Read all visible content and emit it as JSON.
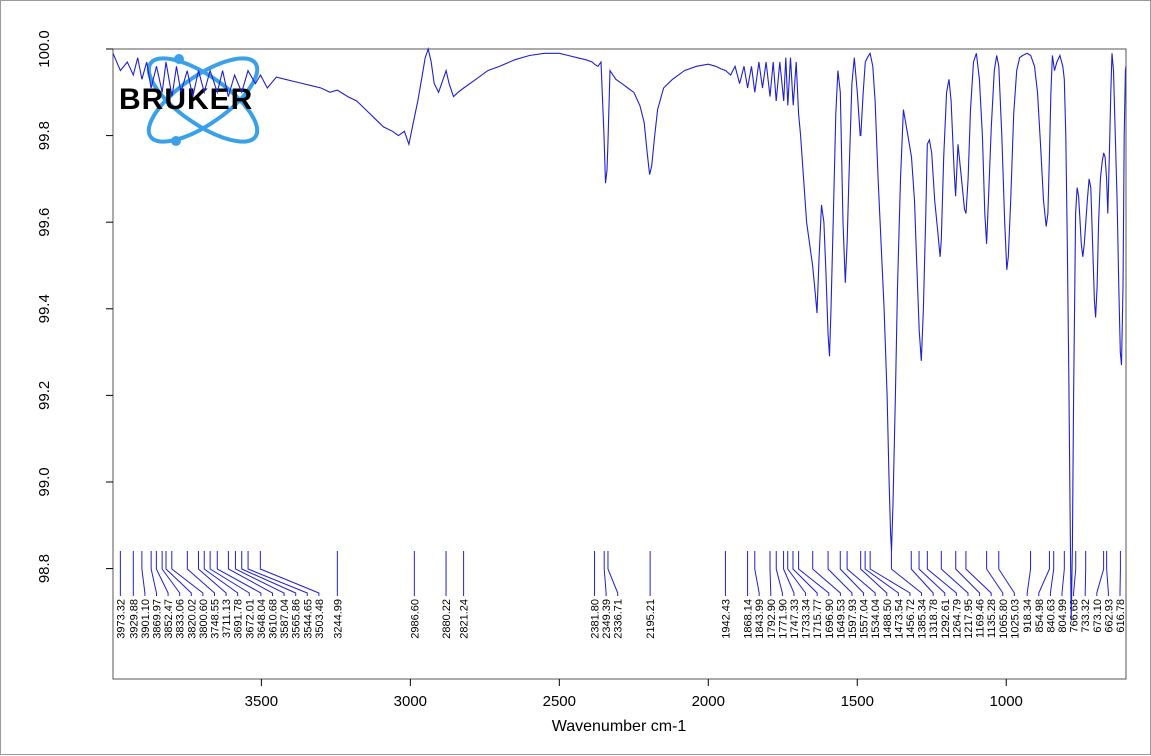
{
  "chart_data": {
    "type": "line",
    "title": "",
    "xlabel": "Wavenumber cm-1",
    "ylabel": "",
    "xlim": [
      3998,
      598
    ],
    "ylim": [
      98.545,
      100.0
    ],
    "x_ticks": [
      3500,
      3000,
      2500,
      2000,
      1500,
      1000
    ],
    "y_ticks": [
      98.8,
      99.0,
      99.2,
      99.4,
      99.6,
      99.8,
      100.0
    ],
    "y_tick_labels": [
      "98.8",
      "99.0",
      "99.2",
      "99.4",
      "99.6",
      "99.8",
      "100.0"
    ],
    "line_color": "#2020d0",
    "grid": false,
    "logo": {
      "text": "BRUKER",
      "ring_color": "#3aa0e8",
      "text_color": "#000000"
    },
    "series": [
      {
        "points": [
          [
            3998,
            99.99
          ],
          [
            3973,
            99.95
          ],
          [
            3950,
            99.97
          ],
          [
            3930,
            99.94
          ],
          [
            3915,
            99.98
          ],
          [
            3901,
            99.93
          ],
          [
            3885,
            99.97
          ],
          [
            3870,
            99.91
          ],
          [
            3852,
            99.96
          ],
          [
            3833,
            99.9
          ],
          [
            3820,
            99.97
          ],
          [
            3800,
            99.89
          ],
          [
            3785,
            99.96
          ],
          [
            3770,
            99.9
          ],
          [
            3749,
            99.95
          ],
          [
            3730,
            99.89
          ],
          [
            3711,
            99.95
          ],
          [
            3692,
            99.9
          ],
          [
            3672,
            99.95
          ],
          [
            3648,
            99.9
          ],
          [
            3630,
            99.95
          ],
          [
            3611,
            99.89
          ],
          [
            3590,
            99.94
          ],
          [
            3566,
            99.9
          ],
          [
            3545,
            99.95
          ],
          [
            3520,
            99.92
          ],
          [
            3503,
            99.94
          ],
          [
            3480,
            99.91
          ],
          [
            3450,
            99.935
          ],
          [
            3420,
            99.93
          ],
          [
            3390,
            99.925
          ],
          [
            3360,
            99.92
          ],
          [
            3330,
            99.915
          ],
          [
            3300,
            99.91
          ],
          [
            3270,
            99.9
          ],
          [
            3245,
            99.905
          ],
          [
            3210,
            99.89
          ],
          [
            3180,
            99.88
          ],
          [
            3150,
            99.86
          ],
          [
            3120,
            99.84
          ],
          [
            3090,
            99.82
          ],
          [
            3060,
            99.81
          ],
          [
            3040,
            99.8
          ],
          [
            3020,
            99.81
          ],
          [
            3005,
            99.78
          ],
          [
            2990,
            99.83
          ],
          [
            2975,
            99.88
          ],
          [
            2960,
            99.94
          ],
          [
            2950,
            99.98
          ],
          [
            2940,
            100.0
          ],
          [
            2930,
            99.97
          ],
          [
            2920,
            99.92
          ],
          [
            2905,
            99.9
          ],
          [
            2890,
            99.93
          ],
          [
            2880,
            99.95
          ],
          [
            2870,
            99.92
          ],
          [
            2855,
            99.89
          ],
          [
            2840,
            99.9
          ],
          [
            2821,
            99.91
          ],
          [
            2780,
            99.93
          ],
          [
            2740,
            99.95
          ],
          [
            2700,
            99.96
          ],
          [
            2650,
            99.975
          ],
          [
            2600,
            99.985
          ],
          [
            2550,
            99.99
          ],
          [
            2500,
            99.99
          ],
          [
            2470,
            99.985
          ],
          [
            2440,
            99.98
          ],
          [
            2410,
            99.975
          ],
          [
            2390,
            99.97
          ],
          [
            2382,
            99.965
          ],
          [
            2370,
            99.96
          ],
          [
            2360,
            99.97
          ],
          [
            2350,
            99.8
          ],
          [
            2345,
            99.69
          ],
          [
            2340,
            99.72
          ],
          [
            2337,
            99.78
          ],
          [
            2330,
            99.95
          ],
          [
            2310,
            99.93
          ],
          [
            2290,
            99.92
          ],
          [
            2270,
            99.91
          ],
          [
            2250,
            99.9
          ],
          [
            2230,
            99.87
          ],
          [
            2215,
            99.83
          ],
          [
            2205,
            99.76
          ],
          [
            2197,
            99.71
          ],
          [
            2190,
            99.73
          ],
          [
            2180,
            99.8
          ],
          [
            2170,
            99.86
          ],
          [
            2150,
            99.91
          ],
          [
            2120,
            99.93
          ],
          [
            2080,
            99.95
          ],
          [
            2040,
            99.96
          ],
          [
            2000,
            99.965
          ],
          [
            1975,
            99.96
          ],
          [
            1960,
            99.955
          ],
          [
            1942,
            99.95
          ],
          [
            1925,
            99.94
          ],
          [
            1910,
            99.96
          ],
          [
            1895,
            99.92
          ],
          [
            1880,
            99.96
          ],
          [
            1868,
            99.91
          ],
          [
            1855,
            99.96
          ],
          [
            1844,
            99.9
          ],
          [
            1830,
            99.97
          ],
          [
            1818,
            99.91
          ],
          [
            1806,
            99.97
          ],
          [
            1793,
            99.89
          ],
          [
            1782,
            99.97
          ],
          [
            1772,
            99.88
          ],
          [
            1760,
            99.97
          ],
          [
            1747,
            99.88
          ],
          [
            1740,
            99.98
          ],
          [
            1733,
            99.87
          ],
          [
            1724,
            99.98
          ],
          [
            1715,
            99.87
          ],
          [
            1705,
            99.97
          ],
          [
            1697,
            99.85
          ],
          [
            1690,
            99.8
          ],
          [
            1680,
            99.7
          ],
          [
            1670,
            99.6
          ],
          [
            1660,
            99.55
          ],
          [
            1650,
            99.5
          ],
          [
            1640,
            99.43
          ],
          [
            1635,
            99.39
          ],
          [
            1628,
            99.52
          ],
          [
            1620,
            99.64
          ],
          [
            1612,
            99.6
          ],
          [
            1605,
            99.48
          ],
          [
            1598,
            99.34
          ],
          [
            1593,
            99.29
          ],
          [
            1588,
            99.4
          ],
          [
            1580,
            99.62
          ],
          [
            1572,
            99.85
          ],
          [
            1565,
            99.95
          ],
          [
            1557,
            99.9
          ],
          [
            1548,
            99.6
          ],
          [
            1540,
            99.46
          ],
          [
            1534,
            99.55
          ],
          [
            1528,
            99.7
          ],
          [
            1518,
            99.92
          ],
          [
            1510,
            99.98
          ],
          [
            1500,
            99.9
          ],
          [
            1490,
            99.8
          ],
          [
            1488,
            99.8
          ],
          [
            1480,
            99.9
          ],
          [
            1473,
            99.97
          ],
          [
            1466,
            99.98
          ],
          [
            1457,
            99.99
          ],
          [
            1448,
            99.96
          ],
          [
            1440,
            99.88
          ],
          [
            1430,
            99.7
          ],
          [
            1420,
            99.55
          ],
          [
            1410,
            99.4
          ],
          [
            1400,
            99.2
          ],
          [
            1393,
            99.0
          ],
          [
            1388,
            98.88
          ],
          [
            1385,
            98.84
          ],
          [
            1380,
            98.95
          ],
          [
            1372,
            99.2
          ],
          [
            1365,
            99.45
          ],
          [
            1355,
            99.7
          ],
          [
            1345,
            99.86
          ],
          [
            1330,
            99.8
          ],
          [
            1318,
            99.75
          ],
          [
            1308,
            99.65
          ],
          [
            1300,
            99.5
          ],
          [
            1292,
            99.35
          ],
          [
            1285,
            99.28
          ],
          [
            1278,
            99.4
          ],
          [
            1270,
            99.62
          ],
          [
            1265,
            99.78
          ],
          [
            1258,
            99.79
          ],
          [
            1250,
            99.76
          ],
          [
            1240,
            99.65
          ],
          [
            1230,
            99.58
          ],
          [
            1222,
            99.52
          ],
          [
            1218,
            99.56
          ],
          [
            1210,
            99.75
          ],
          [
            1200,
            99.9
          ],
          [
            1192,
            99.93
          ],
          [
            1185,
            99.88
          ],
          [
            1175,
            99.72
          ],
          [
            1170,
            99.66
          ],
          [
            1162,
            99.78
          ],
          [
            1150,
            99.7
          ],
          [
            1140,
            99.63
          ],
          [
            1135,
            99.62
          ],
          [
            1128,
            99.7
          ],
          [
            1120,
            99.86
          ],
          [
            1110,
            99.97
          ],
          [
            1100,
            99.99
          ],
          [
            1090,
            99.93
          ],
          [
            1080,
            99.8
          ],
          [
            1072,
            99.62
          ],
          [
            1066,
            99.55
          ],
          [
            1060,
            99.65
          ],
          [
            1050,
            99.82
          ],
          [
            1040,
            99.95
          ],
          [
            1032,
            99.985
          ],
          [
            1025,
            99.96
          ],
          [
            1015,
            99.8
          ],
          [
            1005,
            99.6
          ],
          [
            998,
            99.49
          ],
          [
            993,
            99.52
          ],
          [
            985,
            99.65
          ],
          [
            975,
            99.85
          ],
          [
            965,
            99.95
          ],
          [
            955,
            99.98
          ],
          [
            945,
            99.985
          ],
          [
            930,
            99.99
          ],
          [
            918,
            99.985
          ],
          [
            905,
            99.96
          ],
          [
            895,
            99.9
          ],
          [
            885,
            99.78
          ],
          [
            875,
            99.65
          ],
          [
            866,
            99.59
          ],
          [
            860,
            99.62
          ],
          [
            855,
            99.75
          ],
          [
            850,
            99.9
          ],
          [
            845,
            99.985
          ],
          [
            838,
            99.95
          ],
          [
            830,
            99.97
          ],
          [
            820,
            99.985
          ],
          [
            810,
            99.96
          ],
          [
            805,
            99.93
          ],
          [
            800,
            99.8
          ],
          [
            795,
            99.55
          ],
          [
            790,
            99.25
          ],
          [
            786,
            98.95
          ],
          [
            782,
            98.68
          ],
          [
            778,
            98.85
          ],
          [
            774,
            99.2
          ],
          [
            770,
            99.45
          ],
          [
            767,
            99.62
          ],
          [
            762,
            99.68
          ],
          [
            757,
            99.66
          ],
          [
            752,
            99.6
          ],
          [
            748,
            99.55
          ],
          [
            743,
            99.52
          ],
          [
            738,
            99.55
          ],
          [
            733,
            99.6
          ],
          [
            728,
            99.65
          ],
          [
            722,
            99.7
          ],
          [
            716,
            99.68
          ],
          [
            710,
            99.55
          ],
          [
            704,
            99.42
          ],
          [
            700,
            99.38
          ],
          [
            695,
            99.45
          ],
          [
            690,
            99.6
          ],
          [
            684,
            99.7
          ],
          [
            678,
            99.74
          ],
          [
            673,
            99.76
          ],
          [
            668,
            99.75
          ],
          [
            663,
            99.7
          ],
          [
            659,
            99.62
          ],
          [
            654,
            99.75
          ],
          [
            649,
            99.9
          ],
          [
            645,
            99.99
          ],
          [
            640,
            99.95
          ],
          [
            634,
            99.8
          ],
          [
            628,
            99.65
          ],
          [
            622,
            99.45
          ],
          [
            617,
            99.3
          ],
          [
            613,
            99.27
          ],
          [
            608,
            99.45
          ],
          [
            604,
            99.8
          ],
          [
            600,
            99.95
          ],
          [
            598,
            99.96
          ]
        ]
      }
    ],
    "peak_labels": [
      "3973.32",
      "3929.88",
      "3901.10",
      "3869.97",
      "3852.47",
      "3833.06",
      "3820.02",
      "3800.60",
      "3748.55",
      "3711.13",
      "3691.78",
      "3672.01",
      "3648.04",
      "3610.68",
      "3587.04",
      "3565.86",
      "3544.65",
      "3503.48",
      "3244.99",
      "2986.60",
      "2880.22",
      "2821.24",
      "2381.80",
      "2349.39",
      "2336.71",
      "2195.21",
      "1942.43",
      "1868.14",
      "1843.99",
      "1792.90",
      "1771.90",
      "1747.33",
      "1733.34",
      "1715.77",
      "1696.90",
      "1649.53",
      "1597.93",
      "1557.04",
      "1534.04",
      "1488.50",
      "1473.54",
      "1456.72",
      "1385.34",
      "1318.78",
      "1292.61",
      "1264.79",
      "1217.95",
      "1169.46",
      "1135.28",
      "1065.80",
      "1025.03",
      "918.34",
      "854.98",
      "840.63",
      "804.99",
      "766.68",
      "733.32",
      "673.10",
      "662.93",
      "616.78"
    ]
  }
}
